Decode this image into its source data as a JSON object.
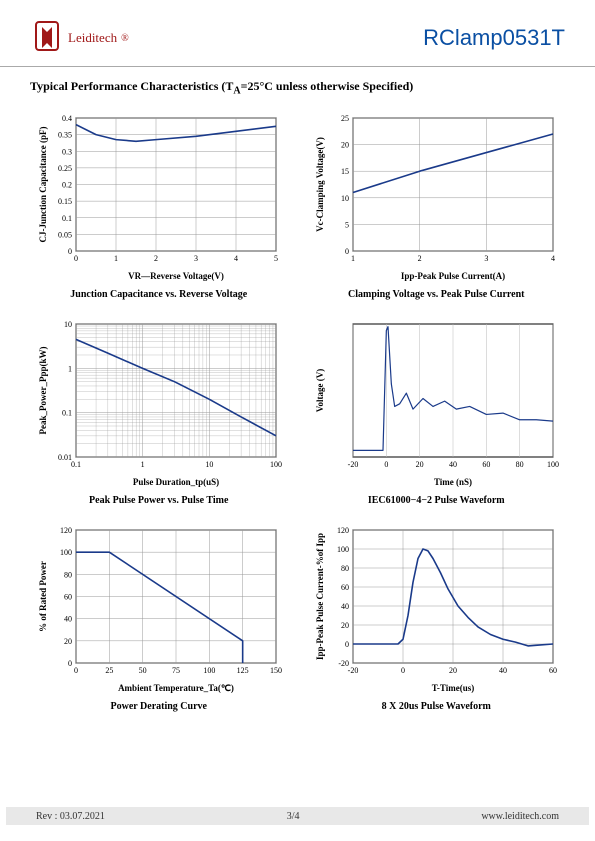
{
  "brand": {
    "name": "Leiditech"
  },
  "product": "RClamp0531T",
  "section_title_pre": "Typical Performance Characteristics (T",
  "section_title_sub": "A",
  "section_title_post": "=25°C unless otherwise Specified)",
  "footer": {
    "rev": "Rev : 03.07.2021",
    "page": "3/4",
    "url": "www.leiditech.com"
  },
  "charts": {
    "cap_vr": {
      "caption": "Junction Capacitance vs. Reverse Voltage",
      "xlabel": "VR—Reverse Voltage(V)",
      "ylabel": "CJ-Junction Capacitance (pF)",
      "xlim": [
        0,
        5
      ],
      "xticks": [
        0,
        1,
        2,
        3,
        4,
        5
      ],
      "ylim": [
        0,
        0.4
      ],
      "yticks": [
        0,
        0.05,
        0.1,
        0.15,
        0.2,
        0.25,
        0.3,
        0.35,
        0.4
      ],
      "line_color": "#1a3a8a",
      "grid_color": "#999999",
      "axis_color": "#000000",
      "line_width": 1.6,
      "tick_font": 8,
      "label_font": 9,
      "data": [
        [
          0,
          0.38
        ],
        [
          0.5,
          0.35
        ],
        [
          1,
          0.335
        ],
        [
          1.5,
          0.33
        ],
        [
          2,
          0.335
        ],
        [
          3,
          0.345
        ],
        [
          4,
          0.36
        ],
        [
          5,
          0.375
        ]
      ]
    },
    "clamp": {
      "caption": "Clamping Voltage vs. Peak Pulse Current",
      "xlabel": "Ipp-Peak Pulse Current(A)",
      "ylabel": "Vc-Clamping Voltage(V)",
      "xlim": [
        1,
        4
      ],
      "xticks": [
        1,
        2,
        3,
        4
      ],
      "ylim": [
        0,
        25
      ],
      "yticks": [
        0,
        5,
        10,
        15,
        20,
        25
      ],
      "line_color": "#1a3a8a",
      "grid_color": "#999999",
      "axis_color": "#000000",
      "line_width": 1.6,
      "tick_font": 8,
      "label_font": 9,
      "data": [
        [
          1,
          11
        ],
        [
          2,
          15
        ],
        [
          3,
          18.5
        ],
        [
          4,
          22
        ]
      ]
    },
    "ppp": {
      "caption": "Peak Pulse Power vs. Pulse Time",
      "xlabel": "Pulse Duration_tp(uS)",
      "ylabel": "Peak_Power_Ppp(kW)",
      "xlog": true,
      "ylog": true,
      "xlim": [
        0.1,
        100
      ],
      "xticks": [
        0.1,
        1,
        10,
        100
      ],
      "ylim": [
        0.01,
        10
      ],
      "yticks": [
        0.01,
        0.1,
        1,
        10
      ],
      "line_color": "#1a3a8a",
      "grid_color": "#999999",
      "axis_color": "#000000",
      "line_width": 1.6,
      "tick_font": 8,
      "label_font": 9,
      "data": [
        [
          0.1,
          4.5
        ],
        [
          0.3,
          2.2
        ],
        [
          1,
          1.0
        ],
        [
          3,
          0.5
        ],
        [
          10,
          0.2
        ],
        [
          30,
          0.08
        ],
        [
          100,
          0.03
        ]
      ]
    },
    "iec": {
      "caption": "IEC61000−4−2 Pulse Waveform",
      "xlabel": "Time  (nS)",
      "ylabel": "Voltage (V)",
      "xlim": [
        -20,
        100
      ],
      "xticks": [
        -20,
        0,
        20,
        40,
        60,
        80,
        100
      ],
      "ylim": [
        0,
        1
      ],
      "yticks_hidden": true,
      "line_color": "#1a3a8a",
      "grid_color": "#bbbbbb",
      "axis_color": "#000000",
      "line_width": 1.2,
      "tick_font": 8,
      "label_font": 9,
      "data": [
        [
          -20,
          0.05
        ],
        [
          -2,
          0.05
        ],
        [
          0,
          0.95
        ],
        [
          1,
          0.98
        ],
        [
          3,
          0.55
        ],
        [
          5,
          0.38
        ],
        [
          8,
          0.4
        ],
        [
          12,
          0.48
        ],
        [
          16,
          0.36
        ],
        [
          22,
          0.44
        ],
        [
          28,
          0.38
        ],
        [
          35,
          0.42
        ],
        [
          42,
          0.36
        ],
        [
          50,
          0.38
        ],
        [
          60,
          0.32
        ],
        [
          70,
          0.33
        ],
        [
          80,
          0.28
        ],
        [
          90,
          0.28
        ],
        [
          100,
          0.27
        ]
      ]
    },
    "derate": {
      "caption": "Power Derating Curve",
      "xlabel": "Ambient Temperature_Ta(℃)",
      "ylabel": "% of Rated Power",
      "xlim": [
        0,
        150
      ],
      "xticks": [
        0,
        25,
        50,
        75,
        100,
        125,
        150
      ],
      "ylim": [
        0,
        120
      ],
      "yticks": [
        0,
        20,
        40,
        60,
        80,
        100,
        120
      ],
      "line_color": "#1a3a8a",
      "grid_color": "#999999",
      "axis_color": "#000000",
      "line_width": 1.6,
      "tick_font": 8,
      "label_font": 9,
      "data": [
        [
          0,
          100
        ],
        [
          25,
          100
        ],
        [
          125,
          20
        ],
        [
          125,
          0
        ]
      ]
    },
    "eight20": {
      "caption": "8 X 20us Pulse Waveform",
      "xlabel": "T-Time(us)",
      "ylabel": "Ipp-Peak Pulse Current-%of Ipp",
      "xlim": [
        -20,
        60
      ],
      "xticks": [
        -20,
        0,
        20,
        40,
        60
      ],
      "ylim": [
        -20,
        120
      ],
      "yticks": [
        -20,
        0,
        20,
        40,
        60,
        80,
        100,
        120
      ],
      "line_color": "#1a3a8a",
      "grid_color": "#999999",
      "axis_color": "#000000",
      "line_width": 1.6,
      "tick_font": 8,
      "label_font": 9,
      "data": [
        [
          -20,
          0
        ],
        [
          -5,
          0
        ],
        [
          -2,
          0
        ],
        [
          0,
          5
        ],
        [
          2,
          30
        ],
        [
          4,
          65
        ],
        [
          6,
          90
        ],
        [
          8,
          100
        ],
        [
          10,
          98
        ],
        [
          12,
          90
        ],
        [
          15,
          75
        ],
        [
          18,
          58
        ],
        [
          22,
          40
        ],
        [
          26,
          28
        ],
        [
          30,
          18
        ],
        [
          35,
          10
        ],
        [
          40,
          5
        ],
        [
          45,
          2
        ],
        [
          50,
          -2
        ],
        [
          55,
          -1
        ],
        [
          60,
          0
        ]
      ]
    }
  }
}
